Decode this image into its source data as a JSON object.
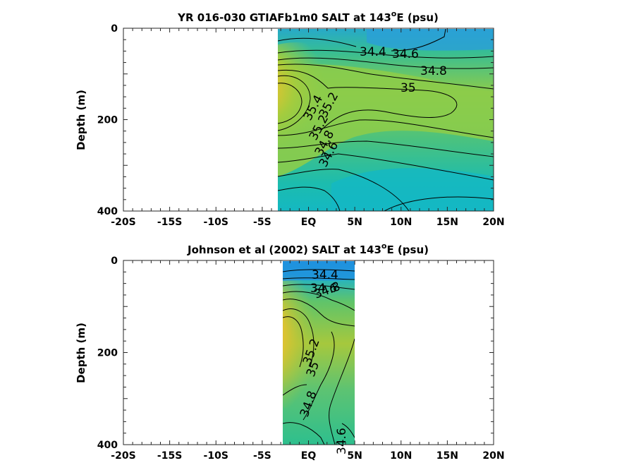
{
  "chart_data": [
    {
      "type": "heatmap",
      "subtype": "filled-contour",
      "title": "YR 016-030 GTIAFb1m0 SALT at 143",
      "title_superscript": "o",
      "title_suffix": "E (psu)",
      "xlabel": "",
      "ylabel": "Depth (m)",
      "x_ticks": [
        "-20S",
        "-15S",
        "-10S",
        "-5S",
        "EQ",
        "5N",
        "10N",
        "15N",
        "20N"
      ],
      "y_ticks": [
        "0",
        "200",
        "400"
      ],
      "x_range_deg": [
        -20,
        20
      ],
      "depth_range_m": [
        0,
        400
      ],
      "data_extent_deg": [
        -3.5,
        20
      ],
      "y_reversed": true,
      "colormap": [
        "#1f8fe0",
        "#14bdb8",
        "#31c08a",
        "#8ccc4a",
        "#cfc631",
        "#f7b63a"
      ],
      "contour_levels": [
        34.4,
        34.6,
        34.8,
        35,
        35.2,
        35.4
      ],
      "contour_labels": [
        "34.4",
        "34.6",
        "34.8",
        "35",
        "35.2",
        "35.4",
        "35.2",
        "34.8",
        "34.6"
      ],
      "salinity_max_center": {
        "lat": -2.5,
        "depth": 140,
        "value": 35.5
      }
    },
    {
      "type": "heatmap",
      "subtype": "filled-contour",
      "title": "Johnson et al (2002) SALT at 143",
      "title_superscript": "o",
      "title_suffix": "E (psu)",
      "xlabel": "",
      "ylabel": "Depth (m)",
      "x_ticks": [
        "-20S",
        "-15S",
        "-10S",
        "-5S",
        "EQ",
        "5N",
        "10N",
        "15N",
        "20N"
      ],
      "y_ticks": [
        "0",
        "200",
        "400"
      ],
      "x_range_deg": [
        -20,
        20
      ],
      "depth_range_m": [
        0,
        400
      ],
      "data_extent_deg": [
        -2.5,
        5
      ],
      "y_reversed": true,
      "colormap": [
        "#1f8fe0",
        "#14bdb8",
        "#31c08a",
        "#8ccc4a",
        "#cfc631",
        "#f7b63a"
      ],
      "contour_levels": [
        34.4,
        34.6,
        34.8,
        35,
        35.2
      ],
      "contour_labels": [
        "34.4",
        "34.6",
        "34.8",
        "35.2",
        "35",
        "34.8",
        "34.6"
      ],
      "salinity_max_center": {
        "lat": -1.5,
        "depth": 190,
        "value": 35.3
      }
    }
  ]
}
